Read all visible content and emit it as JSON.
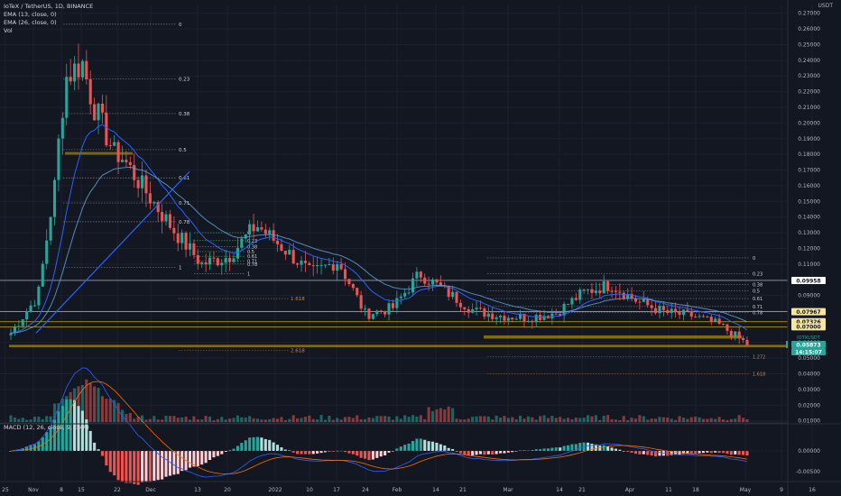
{
  "header": {
    "symbol_line": "IoTeX / TetherUS, 1D, BINANCE",
    "ema_fast_line": "EMA (13, close, 0)",
    "ema_slow_line": "EMA (26, close, 0)",
    "vol_line": "Vol",
    "macd_line": "MACD (12, 26, close, 9, EMA)"
  },
  "colors": {
    "background": "#131722",
    "up": "#26a69a",
    "down": "#ef5350",
    "ema_fast": "#2962ff",
    "ema_slow": "#5d9fd4",
    "fib": "#787b86",
    "support": "#c8a500",
    "macd_hist_up": "#26a69a",
    "macd_hist_down": "#ef5350",
    "macd_line": "#2962ff",
    "signal_line": "#ff6d00"
  },
  "price_axis": {
    "ticks": [
      "0.27000",
      "0.26000",
      "0.25000",
      "0.24000",
      "0.23000",
      "0.22000",
      "0.21000",
      "0.20000",
      "0.19000",
      "0.18000",
      "0.17000",
      "0.16000",
      "0.15000",
      "0.14000",
      "0.13000",
      "0.12000",
      "0.11000",
      "0.10000",
      "0.09000",
      "0.08000",
      "0.07000",
      "0.06000",
      "0.05000",
      "0.04000",
      "0.03000",
      "0.02000",
      "0.01000"
    ],
    "unit": "USDT",
    "price_labels": [
      {
        "value": "0.09958",
        "color": "#ffffff",
        "text_color": "#131722"
      },
      {
        "value": "0.07967",
        "color": "#f5e6a1",
        "text_color": "#131722"
      },
      {
        "value": "0.07326",
        "color": "#f5e6a1",
        "text_color": "#131722"
      },
      {
        "value": "0.07000",
        "color": "#f5e6a1",
        "text_color": "#131722"
      },
      {
        "value": "0.05873",
        "color": "#26a69a",
        "text_color": "#ffffff"
      },
      {
        "value": "14:15:07",
        "color": "#26a69a",
        "text_color": "#ffffff"
      }
    ],
    "symbol_tag": "IOTXUSDT"
  },
  "macd_axis": {
    "ticks": [
      "0.00000",
      "-0.00500"
    ]
  },
  "time_axis": {
    "labels": [
      "25",
      "Nov",
      "8",
      "15",
      "22",
      "Dec",
      "13",
      "20",
      "2022",
      "10",
      "17",
      "24",
      "Feb",
      "14",
      "21",
      "Mar",
      "14",
      "21",
      "Apr",
      "11",
      "18",
      "May",
      "9",
      "16"
    ]
  },
  "fib_left": {
    "labels": [
      "0",
      "0.23",
      "0.38",
      "0.5",
      "0.61",
      "0.71",
      "0.78",
      "1",
      "1.618",
      "2.618"
    ]
  },
  "fib_small": {
    "labels": [
      "0",
      "0.23",
      "0.38",
      "0.5",
      "0.61",
      "0.71",
      "0.78",
      "1"
    ]
  },
  "fib_right": {
    "labels": [
      "0",
      "0.23",
      "0.38",
      "0.5",
      "0.61",
      "0.71",
      "0.78",
      "1.272",
      "1.618"
    ]
  },
  "chart_data": {
    "type": "line",
    "title": "IoTeX / TetherUS, 1D, BINANCE",
    "series": [
      {
        "name": "IOTXUSDT",
        "dates": [
          "2021-10-25",
          "2021-11-01",
          "2021-11-08",
          "2021-11-15",
          "2021-11-22",
          "2021-11-29",
          "2021-12-06",
          "2021-12-13",
          "2021-12-20",
          "2021-12-27",
          "2022-01-03",
          "2022-01-10",
          "2022-01-17",
          "2022-01-24",
          "2022-01-31",
          "2022-02-07",
          "2022-02-14",
          "2022-02-21",
          "2022-02-28",
          "2022-03-07",
          "2022-03-14",
          "2022-03-21",
          "2022-03-28",
          "2022-04-04",
          "2022-04-11",
          "2022-04-18",
          "2022-04-25",
          "2022-05-01"
        ],
        "values": [
          0.066,
          0.09,
          0.205,
          0.182,
          0.18,
          0.155,
          0.131,
          0.11,
          0.115,
          0.135,
          0.12,
          0.104,
          0.112,
          0.078,
          0.082,
          0.104,
          0.092,
          0.08,
          0.077,
          0.076,
          0.079,
          0.092,
          0.097,
          0.086,
          0.079,
          0.077,
          0.071,
          0.059
        ]
      }
    ],
    "xlabel": "",
    "ylabel": "",
    "ylim": [
      0.02,
      0.27
    ]
  }
}
